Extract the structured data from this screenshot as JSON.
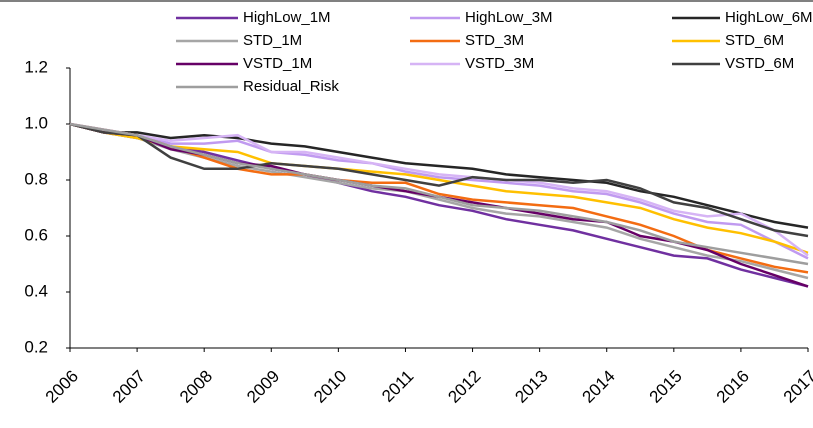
{
  "chart_data": {
    "type": "line",
    "x": [
      2006,
      2006.5,
      2007,
      2007.5,
      2008,
      2008.5,
      2009,
      2009.5,
      2010,
      2010.5,
      2011,
      2011.5,
      2012,
      2012.5,
      2013,
      2013.5,
      2014,
      2014.5,
      2015,
      2015.5,
      2016,
      2016.5,
      2017
    ],
    "xlim": [
      2006,
      2017
    ],
    "xticks": [
      2006,
      2007,
      2008,
      2009,
      2010,
      2011,
      2012,
      2013,
      2014,
      2015,
      2016,
      2017
    ],
    "ylim": [
      0.2,
      1.2
    ],
    "yticks": [
      0.2,
      0.4,
      0.6,
      0.8,
      {
        "value": 1,
        "label": "1.0"
      },
      1.2
    ],
    "grid": false,
    "series": [
      {
        "name": "HighLow_1M",
        "color": "#7030a0",
        "values": [
          1.0,
          0.97,
          0.95,
          0.92,
          0.9,
          0.87,
          0.84,
          0.82,
          0.79,
          0.76,
          0.74,
          0.71,
          0.69,
          0.66,
          0.64,
          0.62,
          0.59,
          0.56,
          0.53,
          0.52,
          0.48,
          0.45,
          0.42
        ]
      },
      {
        "name": "HighLow_3M",
        "color": "#c09af0",
        "values": [
          1.0,
          0.98,
          0.96,
          0.93,
          0.93,
          0.94,
          0.9,
          0.89,
          0.87,
          0.86,
          0.83,
          0.81,
          0.8,
          0.79,
          0.78,
          0.76,
          0.75,
          0.72,
          0.68,
          0.65,
          0.64,
          0.58,
          0.52
        ]
      },
      {
        "name": "HighLow_6M",
        "color": "#262626",
        "values": [
          1.0,
          0.97,
          0.97,
          0.95,
          0.96,
          0.95,
          0.93,
          0.92,
          0.9,
          0.88,
          0.86,
          0.85,
          0.84,
          0.82,
          0.81,
          0.8,
          0.79,
          0.76,
          0.74,
          0.71,
          0.68,
          0.65,
          0.63
        ]
      },
      {
        "name": "STD_1M",
        "color": "#a6a6a6",
        "values": [
          1.0,
          0.97,
          0.95,
          0.91,
          0.88,
          0.85,
          0.83,
          0.81,
          0.79,
          0.77,
          0.76,
          0.73,
          0.7,
          0.68,
          0.67,
          0.65,
          0.63,
          0.59,
          0.56,
          0.53,
          0.51,
          0.48,
          0.45
        ]
      },
      {
        "name": "STD_3M",
        "color": "#f36c12",
        "values": [
          1.0,
          0.98,
          0.96,
          0.92,
          0.88,
          0.84,
          0.82,
          0.82,
          0.8,
          0.79,
          0.79,
          0.75,
          0.73,
          0.72,
          0.71,
          0.7,
          0.67,
          0.64,
          0.6,
          0.55,
          0.52,
          0.49,
          0.47
        ]
      },
      {
        "name": "STD_6M",
        "color": "#ffc000",
        "values": [
          1.0,
          0.97,
          0.95,
          0.92,
          0.91,
          0.9,
          0.86,
          0.85,
          0.84,
          0.83,
          0.82,
          0.8,
          0.78,
          0.76,
          0.75,
          0.74,
          0.72,
          0.7,
          0.66,
          0.63,
          0.61,
          0.58,
          0.54
        ]
      },
      {
        "name": "VSTD_1M",
        "color": "#660066",
        "values": [
          1.0,
          0.97,
          0.96,
          0.91,
          0.89,
          0.86,
          0.85,
          0.82,
          0.8,
          0.78,
          0.76,
          0.74,
          0.72,
          0.7,
          0.68,
          0.66,
          0.65,
          0.6,
          0.58,
          0.55,
          0.5,
          0.46,
          0.42
        ]
      },
      {
        "name": "VSTD_3M",
        "color": "#d6b4f5",
        "values": [
          1.0,
          0.98,
          0.96,
          0.94,
          0.95,
          0.96,
          0.9,
          0.9,
          0.88,
          0.86,
          0.84,
          0.82,
          0.81,
          0.8,
          0.79,
          0.77,
          0.76,
          0.73,
          0.69,
          0.67,
          0.68,
          0.62,
          0.53
        ]
      },
      {
        "name": "VSTD_6M",
        "color": "#404040",
        "values": [
          1.0,
          0.97,
          0.96,
          0.88,
          0.84,
          0.84,
          0.86,
          0.85,
          0.84,
          0.82,
          0.8,
          0.78,
          0.81,
          0.8,
          0.8,
          0.79,
          0.8,
          0.77,
          0.72,
          0.7,
          0.66,
          0.62,
          0.6
        ]
      },
      {
        "name": "Residual_Risk",
        "color": "#9e9e9e",
        "values": [
          1.0,
          0.98,
          0.96,
          0.92,
          0.89,
          0.86,
          0.84,
          0.82,
          0.8,
          0.78,
          0.77,
          0.74,
          0.71,
          0.7,
          0.69,
          0.67,
          0.65,
          0.62,
          0.58,
          0.56,
          0.54,
          0.52,
          0.5
        ]
      }
    ]
  }
}
